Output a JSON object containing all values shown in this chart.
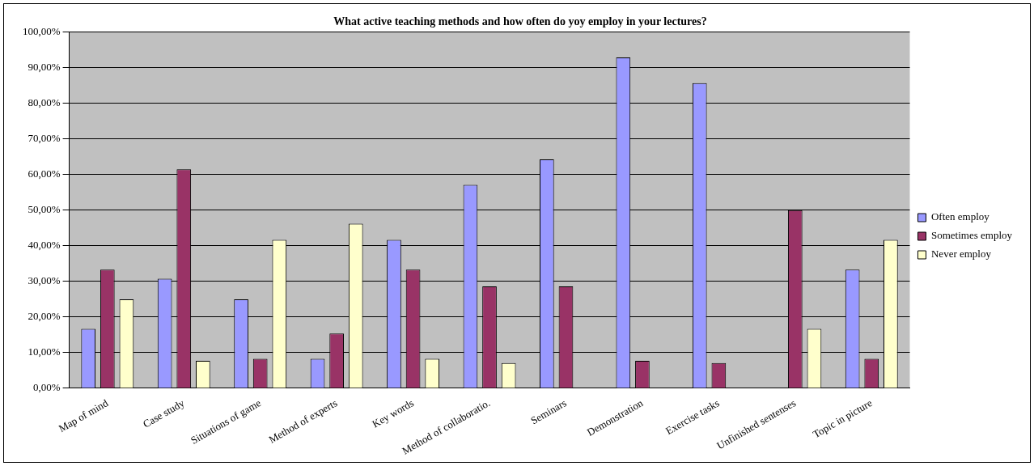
{
  "chart_data": {
    "type": "bar",
    "title": "What active teaching methods and how often do yoy employ in your lectures?",
    "categories": [
      "Map of mind",
      "Case study",
      "Situations of game",
      "Method of experts",
      "Key words",
      "Method of collaboratio.",
      "Seminars",
      "Demonstration",
      "Exercise tasks",
      "Unfinished sentenses",
      "Topic in picture"
    ],
    "series": [
      {
        "name": "Often employ",
        "color": "#9999ff",
        "values": [
          16.7,
          30.8,
          25,
          8.3,
          41.7,
          57.1,
          64.3,
          92.9,
          85.7,
          0,
          33.3
        ]
      },
      {
        "name": "Sometimes employ",
        "color": "#993366",
        "values": [
          33.3,
          61.5,
          8.3,
          15.4,
          33.3,
          28.6,
          28.6,
          7.7,
          7.1,
          50,
          8.3
        ]
      },
      {
        "name": "Never employ",
        "color": "#ffffcc",
        "values": [
          25,
          7.7,
          41.7,
          46.2,
          8.3,
          7.1,
          0,
          0,
          0,
          16.7,
          41.7
        ]
      }
    ],
    "ylim": [
      0,
      100
    ],
    "yticks": [
      {
        "value": 0,
        "label": "0,00%"
      },
      {
        "value": 10,
        "label": "10,00%"
      },
      {
        "value": 20,
        "label": "20,00%"
      },
      {
        "value": 30,
        "label": "30,00%"
      },
      {
        "value": 40,
        "label": "40,00%"
      },
      {
        "value": 50,
        "label": "50,00%"
      },
      {
        "value": 60,
        "label": "60,00%"
      },
      {
        "value": 70,
        "label": "70,00%"
      },
      {
        "value": 80,
        "label": "80,00%"
      },
      {
        "value": 90,
        "label": "90,00%"
      },
      {
        "value": 100,
        "label": "100,00%"
      }
    ],
    "grid": "y",
    "legend": "right"
  }
}
